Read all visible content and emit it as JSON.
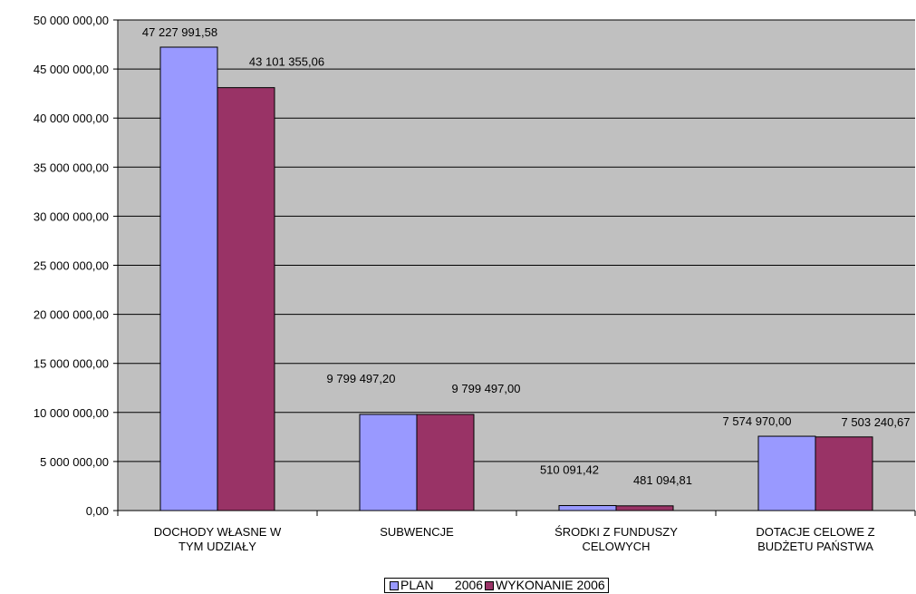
{
  "chart_data": {
    "type": "bar",
    "categories": [
      [
        "DOCHODY WŁASNE W",
        "TYM UDZIAŁY"
      ],
      [
        "SUBWENCJE"
      ],
      [
        "ŚRODKI Z FUNDUSZY",
        "CELOWYCH"
      ],
      [
        "DOTACJE CELOWE Z",
        "BUDŻETU PAŃSTWA"
      ]
    ],
    "series": [
      {
        "name": "PLAN      2006",
        "color": "#9999ff",
        "values": [
          47227991.58,
          9799497.2,
          510091.42,
          7574970.0
        ],
        "labels": [
          "47 227 991,58",
          "9 799 497,20",
          "510 091,42",
          "7 574 970,00"
        ]
      },
      {
        "name": "WYKONANIE 2006",
        "color": "#993366",
        "values": [
          43101355.06,
          9799497.0,
          481094.81,
          7503240.67
        ],
        "labels": [
          "43 101 355,06",
          "9 799 497,00",
          "481 094,81",
          "7 503 240,67"
        ]
      }
    ],
    "ylim": [
      0,
      50000000
    ],
    "yticks": [
      0,
      5000000,
      10000000,
      15000000,
      20000000,
      25000000,
      30000000,
      35000000,
      40000000,
      45000000,
      50000000
    ],
    "ytick_labels": [
      "0,00",
      "5 000 000,00",
      "10 000 000,00",
      "15 000 000,00",
      "20 000 000,00",
      "25 000 000,00",
      "30 000 000,00",
      "35 000 000,00",
      "40 000 000,00",
      "45 000 000,00",
      "50 000 000,00"
    ],
    "plot_background": "#c0c0c0",
    "grid": true,
    "legend_position": "bottom"
  }
}
